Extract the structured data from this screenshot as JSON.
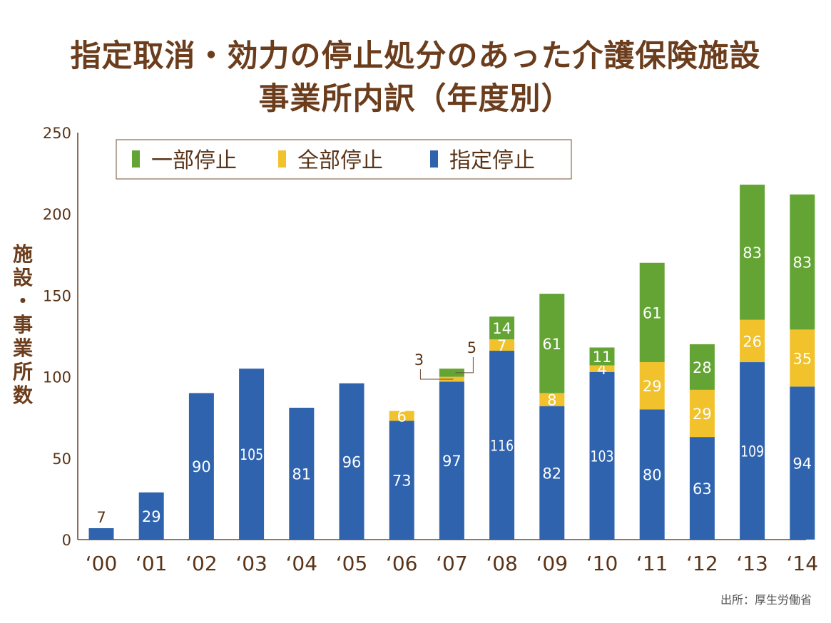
{
  "title": {
    "line1": "指定取消・効力の停止処分のあった介護保険施設",
    "line2": "事業所内訳（年度別）"
  },
  "source": "出所：厚生労働省",
  "chart_data": {
    "type": "bar",
    "stacked": true,
    "title": "指定取消・効力の停止処分のあった介護保険施設事業所内訳（年度別）",
    "xlabel": "",
    "ylabel": "施設・事業所数",
    "ylabel_chars": [
      "施",
      "設",
      "・",
      "事",
      "業",
      "所",
      "数"
    ],
    "ylim": [
      0,
      250
    ],
    "yticks": [
      0,
      50,
      100,
      150,
      200,
      250
    ],
    "grid": false,
    "legend_position": "top-left",
    "categories": [
      "‘00",
      "‘01",
      "‘02",
      "‘03",
      "‘04",
      "‘05",
      "‘06",
      "‘07",
      "‘08",
      "‘09",
      "‘10",
      "‘11",
      "‘12",
      "‘13",
      "‘14"
    ],
    "series": [
      {
        "name": "指定停止",
        "color": "#2f63ae",
        "values": [
          7,
          29,
          90,
          105,
          81,
          96,
          73,
          97,
          116,
          82,
          103,
          80,
          63,
          109,
          94
        ]
      },
      {
        "name": "全部停止",
        "color": "#f1c22b",
        "values": [
          0,
          0,
          0,
          0,
          0,
          0,
          6,
          3,
          7,
          8,
          4,
          29,
          29,
          26,
          35
        ]
      },
      {
        "name": "一部停止",
        "color": "#63a434",
        "values": [
          0,
          0,
          0,
          0,
          0,
          0,
          0,
          5,
          14,
          61,
          11,
          61,
          28,
          83,
          83
        ]
      }
    ],
    "legend": [
      {
        "name": "一部停止",
        "color": "#63a434"
      },
      {
        "name": "全部停止",
        "color": "#f1c22b"
      },
      {
        "name": "指定停止",
        "color": "#2f63ae"
      }
    ],
    "annotations": [
      {
        "category": "‘07",
        "series": "全部停止",
        "text": "3",
        "style": "callout-left"
      },
      {
        "category": "‘07",
        "series": "一部停止",
        "text": "5",
        "style": "callout-right"
      }
    ]
  }
}
